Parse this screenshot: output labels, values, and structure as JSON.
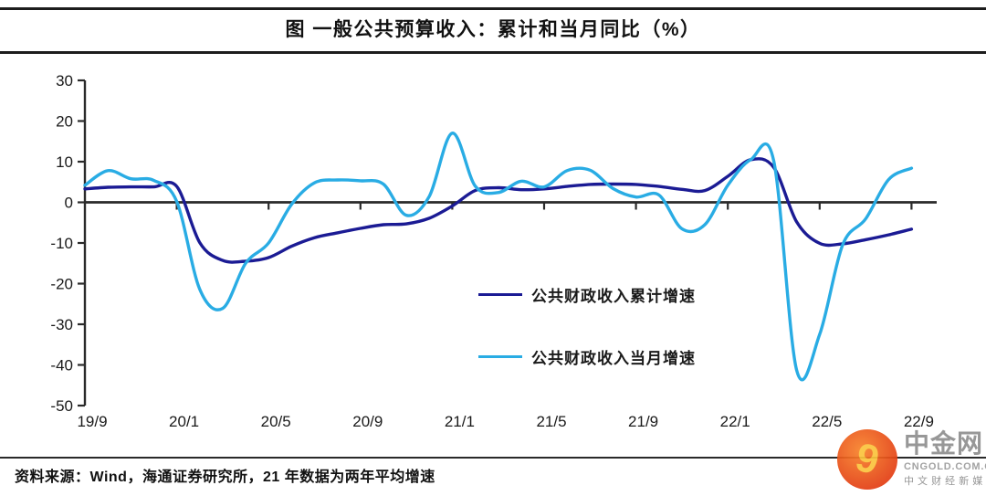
{
  "title": "图  一般公共预算收入：累计和当月同比（%）",
  "source_note": "资料来源：Wind，海通证券研究所，21 年数据为两年平均增速",
  "logo": {
    "name": "中金网",
    "domain": "CNGOLD.COM.CN",
    "tagline": "中 文 财 经 新 媒 体",
    "mark_glyph": "9"
  },
  "colors": {
    "cumulative_line": "#1b1b94",
    "monthly_line": "#29ace4",
    "axis": "#2a2a2a",
    "tick_text": "#1a1a1a",
    "logo_red_outer": "#e03410",
    "logo_red_inner": "#f8832a",
    "logo_gold": "#fac33c"
  },
  "chart_data": {
    "type": "line",
    "x": [
      "19/9",
      "19/10",
      "19/11",
      "19/12",
      "20/1",
      "20/2",
      "20/3",
      "20/4",
      "20/5",
      "20/6",
      "20/7",
      "20/8",
      "20/9",
      "20/10",
      "20/11",
      "20/12",
      "21/1",
      "21/2",
      "21/3",
      "21/4",
      "21/5",
      "21/6",
      "21/7",
      "21/8",
      "21/9",
      "21/10",
      "21/11",
      "21/12",
      "22/1",
      "22/2",
      "22/3",
      "22/4",
      "22/5",
      "22/6",
      "22/7",
      "22/8",
      "22/9"
    ],
    "x_axis_ticks": [
      "19/9",
      "20/1",
      "20/5",
      "20/9",
      "21/1",
      "21/5",
      "21/9",
      "22/1",
      "22/5",
      "22/9"
    ],
    "y_ticks": [
      30,
      20,
      10,
      0,
      -10,
      -20,
      -30,
      -40,
      -50
    ],
    "ylim": [
      -50,
      30
    ],
    "grid": false,
    "legend_position": "inside-center-right",
    "series": [
      {
        "name": "公共财政收入累计增速",
        "color": "#1b1b94",
        "values": [
          3.3,
          3.7,
          3.8,
          3.8,
          3.9,
          -9.9,
          -14.3,
          -14.5,
          -13.6,
          -10.8,
          -8.7,
          -7.5,
          -6.4,
          -5.5,
          -5.3,
          -3.9,
          -0.9,
          2.9,
          3.6,
          3.1,
          3.3,
          3.9,
          4.4,
          4.5,
          4.4,
          3.9,
          3.2,
          2.9,
          6.4,
          10.5,
          8.6,
          -4.8,
          -10.1,
          -10.2,
          -9.2,
          -8.0,
          -6.6
        ]
      },
      {
        "name": "公共财政收入当月增速",
        "color": "#29ace4",
        "values": [
          4.2,
          7.8,
          5.8,
          5.4,
          0.2,
          -21.4,
          -26.1,
          -15.0,
          -10.0,
          -0.5,
          4.8,
          5.5,
          5.3,
          4.5,
          -3.2,
          1.5,
          17.0,
          4.0,
          2.4,
          5.2,
          3.8,
          7.8,
          7.9,
          3.4,
          1.3,
          1.8,
          -6.5,
          -5.5,
          4.2,
          10.5,
          10.2,
          -41.3,
          -32.5,
          -10.5,
          -4.1,
          5.6,
          8.4
        ]
      }
    ]
  }
}
